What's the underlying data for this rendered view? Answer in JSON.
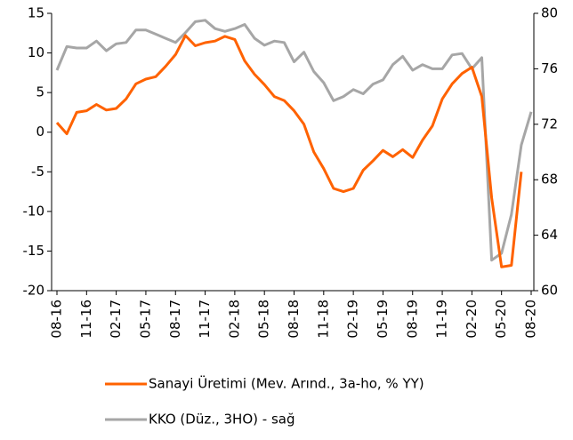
{
  "chart_data": {
    "type": "line",
    "categories": [
      "08-16",
      null,
      null,
      "11-16",
      null,
      null,
      "02-17",
      null,
      null,
      "05-17",
      null,
      null,
      "08-17",
      null,
      null,
      "11-17",
      null,
      null,
      "02-18",
      null,
      null,
      "05-18",
      null,
      null,
      "08-18",
      null,
      null,
      "11-18",
      null,
      null,
      "02-19",
      null,
      null,
      "05-19",
      null,
      null,
      "08-19",
      null,
      null,
      "11-19",
      null,
      null,
      "02-20",
      null,
      null,
      "05-20",
      null,
      null,
      "08-20"
    ],
    "series": [
      {
        "name": "Sanayi Üretimi (Mev. Arınd., 3a-ho, % YY)",
        "color": "#ff6200",
        "values": [
          1.2,
          -0.2,
          2.5,
          2.7,
          3.5,
          2.8,
          3.0,
          4.2,
          6.1,
          6.7,
          7.0,
          8.3,
          9.8,
          12.2,
          10.9,
          11.3,
          11.5,
          12.1,
          11.7,
          9.0,
          7.3,
          6.0,
          4.5,
          4.0,
          2.7,
          1.0,
          -2.5,
          -4.6,
          -7.1,
          -7.5,
          -7.1,
          -4.8,
          -3.6,
          -2.3,
          -3.1,
          -2.2,
          -3.2,
          -1.0,
          0.8,
          4.2,
          6.1,
          7.4,
          8.2,
          4.5,
          -8.3,
          -17.0,
          -16.8,
          -5.0,
          null
        ]
      },
      {
        "name": "KKO (Düz., 3HO) - sağ",
        "color": "#a6a6a6",
        "axis": "y2",
        "values": [
          75.9,
          77.6,
          77.5,
          77.5,
          78.0,
          77.3,
          77.8,
          77.9,
          78.8,
          78.8,
          78.5,
          78.2,
          77.9,
          78.6,
          79.4,
          79.5,
          78.9,
          78.7,
          78.9,
          79.2,
          78.2,
          77.7,
          78.0,
          77.9,
          76.5,
          77.2,
          75.8,
          75.0,
          73.7,
          74.0,
          74.5,
          74.2,
          74.9,
          75.2,
          76.3,
          76.9,
          75.9,
          76.3,
          76.0,
          76.0,
          77.0,
          77.1,
          76.0,
          76.8,
          62.2,
          62.7,
          65.5,
          70.5,
          72.9
        ]
      }
    ],
    "ylim": [
      -20,
      15
    ],
    "yticks": [
      15,
      10,
      5,
      0,
      -5,
      -10,
      -15,
      -20
    ],
    "y2lim": [
      60,
      80
    ],
    "y2ticks": [
      80,
      76,
      72,
      68,
      64,
      60
    ]
  }
}
